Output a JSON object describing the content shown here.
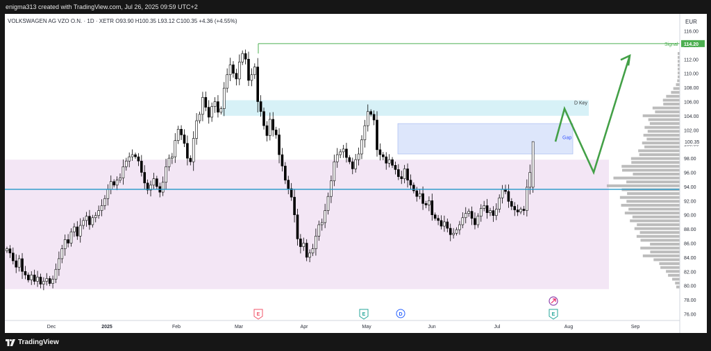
{
  "header": {
    "creator": "enigma313 created with TradingView.com, Jul 26, 2025 09:59 UTC+2",
    "symbol_line": "VOLKSWAGEN AG VZO O.N. · 1D · XETR  O93.90  H100.35  L93.12  C100.35  +4.36 (+4.55%)"
  },
  "footer": {
    "brand": "TradingView"
  },
  "colors": {
    "up_candle": "#ffffff",
    "down_candle": "#000000",
    "wick": "#000000",
    "signal_line": "#4caf50",
    "support_line": "#2196c8",
    "key_zone": "#d7f1f7",
    "gap_zone": "#dde6fb",
    "range_zone": "#f3e6f5",
    "projection": "#43a047",
    "volume_profile": "#b0b0b0"
  },
  "chart_data": {
    "type": "candlestick",
    "currency": "EUR",
    "ylim": [
      75,
      117
    ],
    "yticks": [
      116,
      114,
      112,
      110,
      108,
      106,
      104,
      102,
      100,
      98,
      96,
      94,
      92,
      90,
      88,
      86,
      84,
      82,
      80,
      78,
      76
    ],
    "xticks": [
      "Dec",
      "2025",
      "Feb",
      "Mar",
      "Apr",
      "May",
      "Jun",
      "Jul",
      "Aug",
      "Sep"
    ],
    "price_label": "100.35",
    "signal": {
      "label": "Signal",
      "value": "114.20"
    },
    "support_level": 93.6,
    "zones": [
      {
        "label": "D Key",
        "low": 104.0,
        "high": 106.2
      },
      {
        "label": "Gap",
        "low": 98.6,
        "high": 102.9
      },
      {
        "label": "",
        "low": 79.5,
        "high": 97.8
      }
    ],
    "events": [
      {
        "label": "E",
        "kind": "earnings",
        "month": "Mar"
      },
      {
        "label": "E",
        "kind": "earnings",
        "month": "May"
      },
      {
        "label": "D",
        "kind": "dividend",
        "month": "May"
      },
      {
        "label": "E",
        "kind": "earnings",
        "month": "Jul"
      }
    ],
    "projection": [
      100.35,
      105.0,
      96.0,
      112.5
    ],
    "closes": [
      85.2,
      84.6,
      83.5,
      82.6,
      83.8,
      82.0,
      81.5,
      80.8,
      81.5,
      80.6,
      81.2,
      80.2,
      80.6,
      81.0,
      80.3,
      80.9,
      82.3,
      83.8,
      85.2,
      86.5,
      86.0,
      87.6,
      88.3,
      87.0,
      88.5,
      89.2,
      89.8,
      88.6,
      89.6,
      89.9,
      90.6,
      91.3,
      92.3,
      93.6,
      94.7,
      94.2,
      94.9,
      95.2,
      96.8,
      97.6,
      98.2,
      98.5,
      98.2,
      97.6,
      96.0,
      94.5,
      93.5,
      94.2,
      95.1,
      94.0,
      93.2,
      94.6,
      96.8,
      98.0,
      98.2,
      100.5,
      102.1,
      101.3,
      100.1,
      98.0,
      97.5,
      100.8,
      103.3,
      104.2,
      106.6,
      105.2,
      103.8,
      105.3,
      106.0,
      104.5,
      105.0,
      107.9,
      109.8,
      111.2,
      110.0,
      109.2,
      111.6,
      112.8,
      112.0,
      109.0,
      109.8,
      110.9,
      106.0,
      104.6,
      102.6,
      101.2,
      103.5,
      102.0,
      101.3,
      98.5,
      96.9,
      94.9,
      93.7,
      92.5,
      90.0,
      86.6,
      85.5,
      86.0,
      84.0,
      84.6,
      85.2,
      87.0,
      88.6,
      88.9,
      90.6,
      92.6,
      94.8,
      97.5,
      98.5,
      98.9,
      99.3,
      98.1,
      97.5,
      96.5,
      97.8,
      98.6,
      100.6,
      102.6,
      104.6,
      104.2,
      103.4,
      99.2,
      98.5,
      98.2,
      97.3,
      97.8,
      97.0,
      96.4,
      95.4,
      95.1,
      96.5,
      94.9,
      94.2,
      93.4,
      92.6,
      93.0,
      91.6,
      91.4,
      92.0,
      90.0,
      89.5,
      89.2,
      88.4,
      89.0,
      88.1,
      87.2,
      87.4,
      87.9,
      88.6,
      89.6,
      90.2,
      90.5,
      89.5,
      88.6,
      89.8,
      90.9,
      91.3,
      90.3,
      90.6,
      89.9,
      90.8,
      92.4,
      93.6,
      93.3,
      91.9,
      91.2,
      90.7,
      90.4,
      90.8,
      90.6,
      93.9,
      96.0,
      100.35
    ]
  }
}
